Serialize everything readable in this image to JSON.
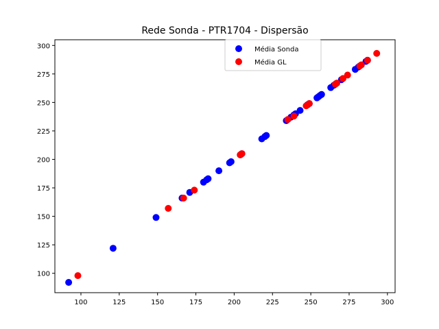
{
  "chart_data": {
    "type": "scatter",
    "title": "Rede Sonda - PTR1704 - Dispersão",
    "xlabel": "",
    "ylabel": "",
    "xlim": [
      83,
      305
    ],
    "ylim": [
      83,
      305
    ],
    "xticks": [
      100,
      125,
      150,
      175,
      200,
      225,
      250,
      275,
      300
    ],
    "yticks": [
      100,
      125,
      150,
      175,
      200,
      225,
      250,
      275,
      300
    ],
    "grid": false,
    "legend_position": "top-right",
    "series": [
      {
        "name": "Média Sonda",
        "color": "#0000ff",
        "points": [
          [
            92,
            92
          ],
          [
            121,
            122
          ],
          [
            149,
            149
          ],
          [
            166,
            166
          ],
          [
            171,
            171
          ],
          [
            180,
            180
          ],
          [
            182,
            182
          ],
          [
            183,
            183
          ],
          [
            190,
            190
          ],
          [
            197,
            197
          ],
          [
            198,
            198
          ],
          [
            204,
            204
          ],
          [
            205,
            205
          ],
          [
            218,
            218
          ],
          [
            220,
            220
          ],
          [
            221,
            221
          ],
          [
            234,
            234
          ],
          [
            237,
            237
          ],
          [
            239,
            239
          ],
          [
            240,
            240
          ],
          [
            243,
            243
          ],
          [
            248,
            248
          ],
          [
            249,
            249
          ],
          [
            254,
            254
          ],
          [
            255,
            255
          ],
          [
            256,
            256
          ],
          [
            257,
            257
          ],
          [
            263,
            263
          ],
          [
            265,
            265
          ],
          [
            270,
            270
          ],
          [
            279,
            279
          ],
          [
            281,
            281
          ],
          [
            286,
            286
          ],
          [
            287,
            287
          ]
        ]
      },
      {
        "name": "Média GL",
        "color": "#ff0000",
        "points": [
          [
            98,
            98
          ],
          [
            157,
            157
          ],
          [
            167,
            166
          ],
          [
            174,
            173
          ],
          [
            204,
            204
          ],
          [
            205,
            205
          ],
          [
            235,
            235
          ],
          [
            239,
            238
          ],
          [
            247,
            247
          ],
          [
            249,
            249
          ],
          [
            266,
            266
          ],
          [
            267,
            267
          ],
          [
            271,
            271
          ],
          [
            274,
            274
          ],
          [
            282,
            282
          ],
          [
            283,
            283
          ],
          [
            287,
            287
          ],
          [
            293,
            293
          ]
        ]
      }
    ]
  }
}
